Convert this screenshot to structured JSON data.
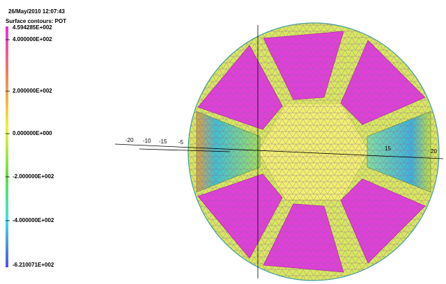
{
  "header": {
    "timestamp": "26/May/2010 12:07:43"
  },
  "legend": {
    "title": "Surface contours: POT",
    "labels": [
      "4.594285E+002",
      "4.000000E+002",
      "2.000000E+002",
      "0.000000E+000",
      "-2.000000E+002",
      "-4.000000E+002",
      "-6.210071E+002"
    ]
  },
  "axis": {
    "labels": [
      "-20",
      "-10",
      "-15",
      "-5",
      "15",
      "20"
    ]
  }
}
